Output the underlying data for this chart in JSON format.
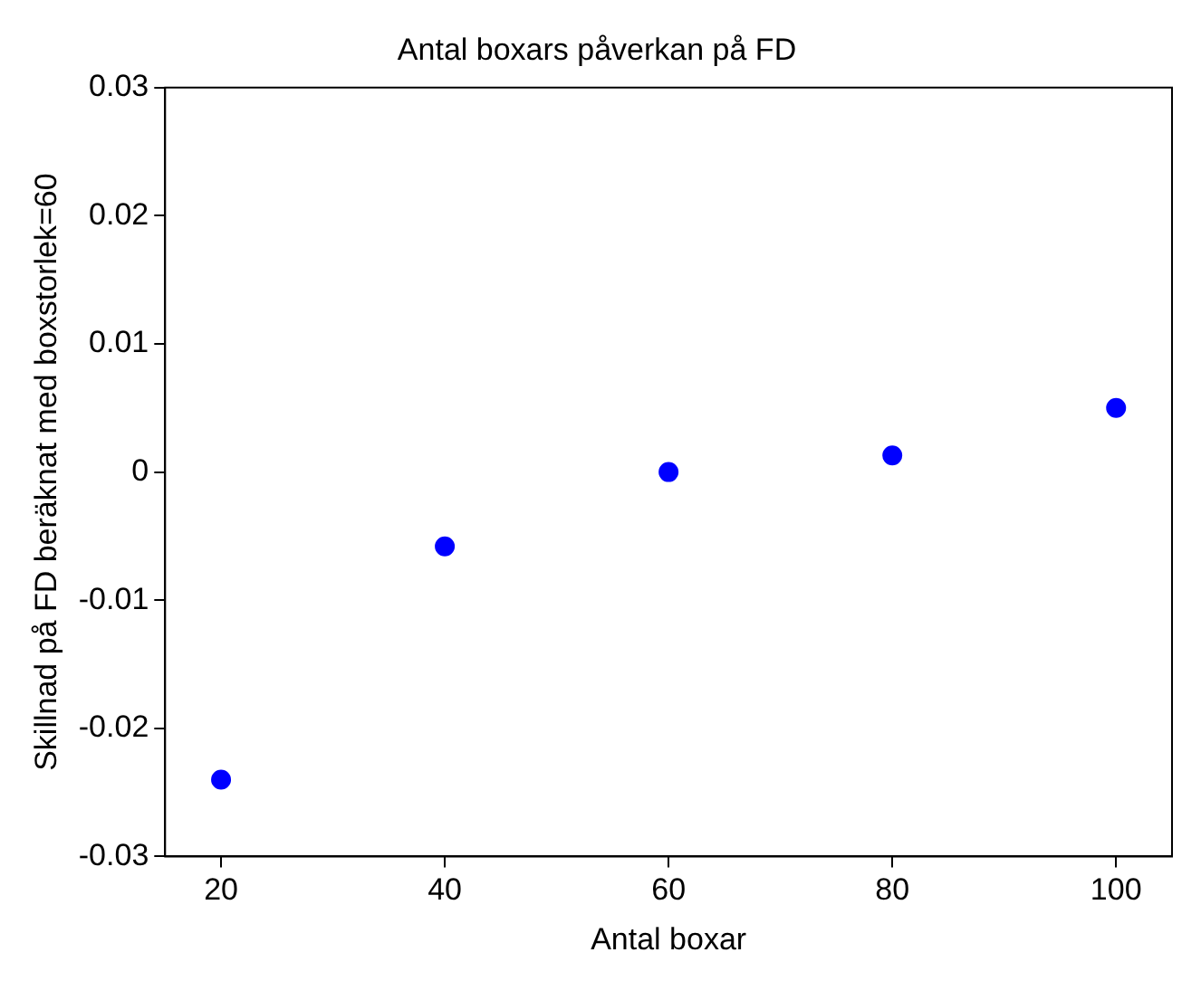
{
  "chart_data": {
    "type": "scatter",
    "title": "Antal boxars påverkan på FD",
    "xlabel": "Antal boxar",
    "ylabel": "Skillnad på FD beräknat med boxstorlek=60",
    "x": [
      20,
      40,
      60,
      80,
      100
    ],
    "series": [
      {
        "color": "#0000ff",
        "values": [
          -0.024,
          -0.0058,
          0,
          0.0013,
          0.005
        ]
      }
    ],
    "xlim": [
      15,
      105
    ],
    "xticks": [
      20,
      40,
      60,
      80,
      100
    ],
    "ylim": [
      -0.03,
      0.03
    ],
    "yticks": [
      -0.03,
      -0.02,
      -0.01,
      0,
      0.01,
      0.02,
      0.03
    ],
    "grid": false,
    "legend": false,
    "marker": "circle"
  }
}
